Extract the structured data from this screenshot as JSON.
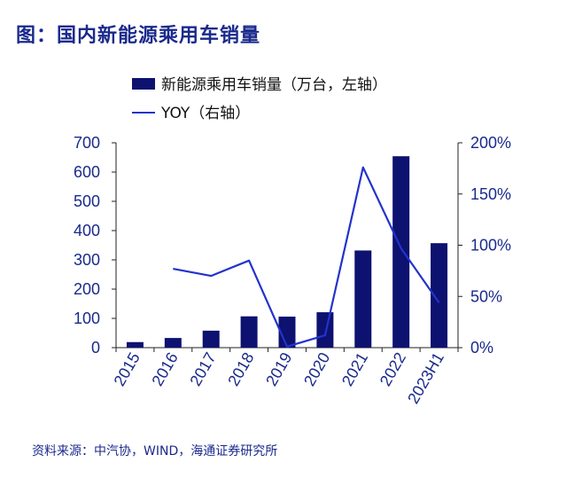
{
  "title": "图：国内新能源乘用车销量",
  "source": "资料来源：中汽协，WIND，海通证券研究所",
  "colors": {
    "bar": "#0d1170",
    "line": "#2233cc",
    "text": "#1a2a8c"
  },
  "chart_data": {
    "type": "bar+line",
    "categories": [
      "2015",
      "2016",
      "2017",
      "2018",
      "2019",
      "2020",
      "2021",
      "2022",
      "2023H1"
    ],
    "series": [
      {
        "name": "新能源乘用车销量（万台，左轴）",
        "type": "bar",
        "axis": "left",
        "values": [
          19,
          33,
          58,
          107,
          106,
          121,
          332,
          654,
          357
        ]
      },
      {
        "name": "YOY（右轴）",
        "type": "line",
        "axis": "right",
        "values": [
          null,
          77,
          70,
          85,
          1,
          12,
          176,
          97,
          44
        ]
      }
    ],
    "ylim_left": [
      0,
      700
    ],
    "yticks_left": [
      "0",
      "100",
      "200",
      "300",
      "400",
      "500",
      "600",
      "700"
    ],
    "ylim_right": [
      0,
      200
    ],
    "yticks_right": [
      "0%",
      "50%",
      "100%",
      "150%",
      "200%"
    ],
    "legend_position": "top-center",
    "grid": false
  }
}
